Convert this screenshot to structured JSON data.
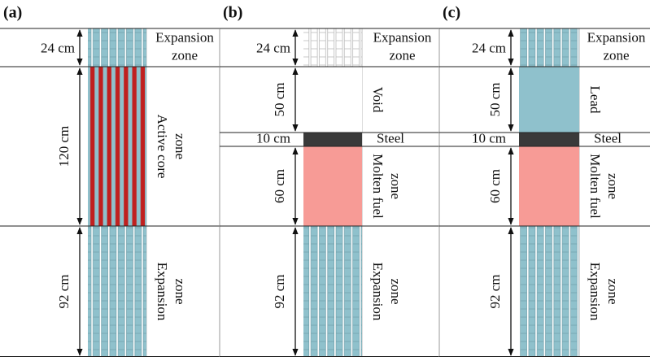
{
  "panels": [
    {
      "label": "(a)",
      "zones": [
        {
          "length": "24 cm",
          "name": [
            "Expansion",
            "zone"
          ]
        },
        {
          "length": "120 cm",
          "name": [
            "Active core",
            "zone"
          ]
        },
        {
          "length": "92 cm",
          "name": [
            "Expansion",
            "zone"
          ]
        }
      ]
    },
    {
      "label": "(b)",
      "zones": [
        {
          "length": "24 cm",
          "name": [
            "Expansion",
            "zone"
          ]
        },
        {
          "length": "50 cm",
          "name": [
            "Void"
          ]
        },
        {
          "length": "10 cm",
          "name": [
            "Steel"
          ]
        },
        {
          "length": "60 cm",
          "name": [
            "Molten fuel",
            "zone"
          ]
        },
        {
          "length": "92 cm",
          "name": [
            "Expansion",
            "zone"
          ]
        }
      ]
    },
    {
      "label": "(c)",
      "zones": [
        {
          "length": "24 cm",
          "name": [
            "Expansion",
            "zone"
          ]
        },
        {
          "length": "50 cm",
          "name": [
            "Lead"
          ]
        },
        {
          "length": "10 cm",
          "name": [
            "Steel"
          ]
        },
        {
          "length": "60 cm",
          "name": [
            "Molten fuel",
            "zone"
          ]
        },
        {
          "length": "92 cm",
          "name": [
            "Expansion",
            "zone"
          ]
        }
      ]
    }
  ]
}
